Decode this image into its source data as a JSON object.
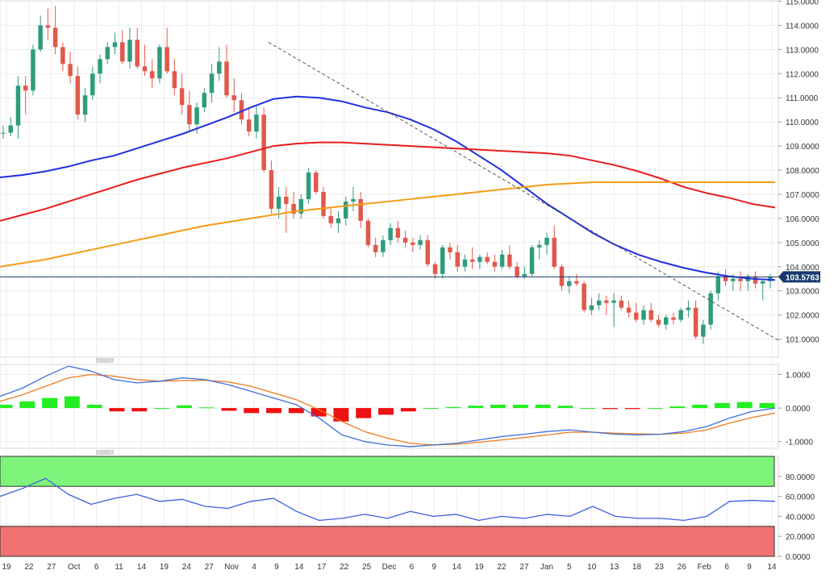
{
  "chart_data": [
    {
      "type": "candlestick",
      "panel": "price",
      "title": "",
      "x_tick_labels": [
        "19",
        "22",
        "27",
        "Oct",
        "6",
        "11",
        "14",
        "19",
        "24",
        "27",
        "Nov",
        "4",
        "9",
        "14",
        "17",
        "22",
        "25",
        "Dec",
        "6",
        "9",
        "14",
        "19",
        "22",
        "27",
        "Jan",
        "5",
        "10",
        "13",
        "18",
        "23",
        "26",
        "Feb",
        "6",
        "9",
        "14"
      ],
      "y_ticks": [
        "115.0000",
        "114.0000",
        "113.0000",
        "112.0000",
        "111.0000",
        "110.0000",
        "109.0000",
        "108.0000",
        "107.0000",
        "106.0000",
        "105.0000",
        "104.0000",
        "103.0000",
        "102.0000",
        "101.0000"
      ],
      "ylim": [
        100.25,
        115.05
      ],
      "last_price": "103.5763",
      "colors": {
        "up": "#2e9c7c",
        "down": "#e0594b",
        "ma50": "#1f2fe0",
        "ma100": "#e81c1c",
        "ma200": "#f59b15",
        "trendline": "#555555",
        "price_line": "#1a3a6e",
        "price_badge": "#1a3a6e"
      },
      "series": [
        {
          "name": "",
          "role": "ma50",
          "values": [
            107.7,
            107.8,
            107.95,
            108.15,
            108.4,
            108.6,
            108.9,
            109.2,
            109.5,
            109.85,
            110.2,
            110.6,
            110.95,
            111.05,
            111.0,
            110.85,
            110.6,
            110.4,
            110.1,
            109.7,
            109.2,
            108.6,
            108.0,
            107.3,
            106.6,
            106.0,
            105.4,
            104.9,
            104.5,
            104.2,
            103.95,
            103.75,
            103.6,
            103.5,
            103.45
          ]
        },
        {
          "name": "",
          "role": "ma100",
          "values": [
            105.9,
            106.15,
            106.4,
            106.7,
            107.0,
            107.3,
            107.6,
            107.85,
            108.1,
            108.3,
            108.5,
            108.75,
            109.0,
            109.1,
            109.15,
            109.15,
            109.1,
            109.05,
            109.0,
            108.95,
            108.9,
            108.85,
            108.8,
            108.75,
            108.7,
            108.6,
            108.4,
            108.2,
            107.95,
            107.65,
            107.3,
            107.05,
            106.85,
            106.6,
            106.45
          ]
        },
        {
          "name": "",
          "role": "ma200",
          "values": [
            104.0,
            104.15,
            104.3,
            104.5,
            104.7,
            104.9,
            105.1,
            105.3,
            105.5,
            105.7,
            105.85,
            106.0,
            106.15,
            106.3,
            106.4,
            106.5,
            106.6,
            106.7,
            106.8,
            106.9,
            107.0,
            107.1,
            107.2,
            107.3,
            107.4,
            107.45,
            107.5,
            107.5,
            107.5,
            107.5,
            107.5,
            107.5,
            107.5,
            107.5,
            107.5
          ]
        }
      ],
      "candles": [
        [
          109.55,
          109.85,
          109.3,
          109.55
        ],
        [
          109.55,
          110.2,
          109.4,
          109.85
        ],
        [
          109.85,
          111.9,
          109.3,
          111.5
        ],
        [
          111.5,
          111.9,
          110.3,
          111.3
        ],
        [
          111.3,
          113.2,
          111.1,
          113.0
        ],
        [
          113.0,
          114.4,
          112.9,
          114.0
        ],
        [
          114.0,
          114.7,
          113.4,
          113.9
        ],
        [
          113.9,
          114.8,
          112.8,
          113.1
        ],
        [
          113.1,
          113.3,
          112.1,
          112.4
        ],
        [
          112.4,
          112.9,
          111.6,
          111.9
        ],
        [
          111.9,
          112.3,
          110.1,
          110.3
        ],
        [
          110.3,
          111.4,
          110.0,
          111.1
        ],
        [
          111.1,
          112.3,
          110.9,
          112.0
        ],
        [
          112.0,
          112.8,
          111.6,
          112.6
        ],
        [
          112.6,
          113.3,
          112.4,
          113.1
        ],
        [
          113.1,
          113.7,
          112.8,
          113.3
        ],
        [
          113.3,
          113.8,
          112.4,
          112.5
        ],
        [
          112.5,
          113.9,
          112.2,
          113.4
        ],
        [
          113.4,
          113.9,
          112.2,
          112.3
        ],
        [
          112.3,
          113.2,
          111.9,
          112.1
        ],
        [
          112.1,
          112.6,
          111.4,
          111.8
        ],
        [
          111.8,
          113.2,
          111.6,
          113.1
        ],
        [
          113.1,
          113.9,
          112.0,
          112.1
        ],
        [
          112.1,
          112.6,
          111.1,
          111.4
        ],
        [
          111.4,
          112.0,
          110.3,
          110.7
        ],
        [
          110.7,
          111.3,
          109.6,
          109.9
        ],
        [
          109.9,
          110.8,
          109.5,
          110.6
        ],
        [
          110.6,
          111.4,
          110.4,
          111.2
        ],
        [
          111.2,
          112.4,
          110.8,
          112.0
        ],
        [
          112.0,
          113.1,
          111.7,
          112.5
        ],
        [
          112.5,
          113.2,
          111.0,
          111.1
        ],
        [
          111.1,
          111.8,
          110.4,
          110.9
        ],
        [
          110.9,
          111.2,
          109.9,
          110.1
        ],
        [
          110.1,
          110.6,
          109.4,
          109.6
        ],
        [
          109.6,
          110.7,
          109.3,
          110.3
        ],
        [
          110.3,
          110.6,
          107.9,
          108.0
        ],
        [
          108.0,
          108.4,
          106.2,
          106.4
        ],
        [
          106.4,
          107.3,
          106.0,
          106.9
        ],
        [
          106.9,
          107.3,
          105.4,
          106.6
        ],
        [
          106.6,
          107.1,
          106.0,
          106.2
        ],
        [
          106.2,
          107.0,
          106.0,
          106.8
        ],
        [
          106.8,
          108.1,
          106.6,
          107.9
        ],
        [
          107.9,
          108.0,
          107.0,
          107.1
        ],
        [
          107.1,
          107.3,
          106.0,
          106.1
        ],
        [
          106.1,
          106.4,
          105.6,
          105.8
        ],
        [
          105.8,
          106.3,
          105.4,
          106.0
        ],
        [
          106.0,
          106.9,
          105.7,
          106.7
        ],
        [
          106.7,
          107.3,
          106.3,
          106.8
        ],
        [
          106.8,
          107.1,
          105.6,
          105.9
        ],
        [
          105.9,
          106.0,
          104.8,
          104.9
        ],
        [
          104.9,
          105.2,
          104.4,
          104.6
        ],
        [
          104.6,
          105.3,
          104.4,
          105.1
        ],
        [
          105.1,
          105.8,
          104.9,
          105.6
        ],
        [
          105.6,
          105.9,
          105.0,
          105.2
        ],
        [
          105.2,
          105.5,
          104.8,
          105.0
        ],
        [
          105.0,
          105.2,
          104.6,
          104.9
        ],
        [
          104.9,
          105.3,
          104.7,
          105.1
        ],
        [
          105.1,
          105.3,
          104.0,
          104.1
        ],
        [
          104.1,
          104.2,
          103.5,
          103.7
        ],
        [
          103.7,
          104.9,
          103.5,
          104.8
        ],
        [
          104.8,
          105.0,
          104.3,
          104.6
        ],
        [
          104.6,
          104.9,
          103.8,
          104.0
        ],
        [
          104.0,
          104.5,
          103.8,
          104.3
        ],
        [
          104.3,
          104.8,
          103.9,
          104.2
        ],
        [
          104.2,
          104.5,
          103.9,
          104.4
        ],
        [
          104.4,
          104.6,
          104.1,
          104.2
        ],
        [
          104.2,
          104.5,
          103.8,
          104.0
        ],
        [
          104.0,
          104.7,
          103.9,
          104.5
        ],
        [
          104.5,
          104.9,
          103.9,
          104.0
        ],
        [
          104.0,
          104.2,
          103.5,
          103.6
        ],
        [
          103.6,
          104.0,
          103.5,
          103.7
        ],
        [
          103.7,
          104.9,
          103.6,
          104.8
        ],
        [
          104.8,
          105.1,
          104.3,
          104.9
        ],
        [
          104.9,
          105.4,
          104.5,
          105.2
        ],
        [
          105.2,
          105.7,
          103.9,
          104.0
        ],
        [
          104.0,
          104.1,
          103.0,
          103.2
        ],
        [
          103.2,
          103.6,
          102.9,
          103.4
        ],
        [
          103.4,
          103.7,
          103.2,
          103.3
        ],
        [
          103.3,
          103.4,
          102.1,
          102.2
        ],
        [
          102.2,
          102.7,
          102.0,
          102.4
        ],
        [
          102.4,
          102.9,
          102.2,
          102.6
        ],
        [
          102.6,
          102.8,
          102.0,
          102.5
        ],
        [
          102.5,
          102.9,
          101.5,
          102.6
        ],
        [
          102.6,
          102.8,
          102.2,
          102.3
        ],
        [
          102.3,
          102.6,
          101.9,
          102.1
        ],
        [
          102.1,
          102.5,
          101.7,
          101.8
        ],
        [
          101.8,
          102.4,
          101.6,
          102.2
        ],
        [
          102.2,
          102.5,
          101.7,
          101.8
        ],
        [
          101.8,
          102.0,
          101.5,
          101.6
        ],
        [
          101.6,
          102.0,
          101.4,
          101.9
        ],
        [
          101.9,
          102.1,
          101.6,
          101.8
        ],
        [
          101.8,
          102.3,
          101.7,
          102.2
        ],
        [
          102.2,
          102.6,
          101.9,
          102.3
        ],
        [
          102.3,
          102.6,
          101.0,
          101.1
        ],
        [
          101.1,
          101.8,
          100.8,
          101.6
        ],
        [
          101.6,
          103.0,
          101.4,
          102.9
        ],
        [
          102.9,
          103.8,
          102.6,
          103.6
        ],
        [
          103.6,
          103.9,
          103.2,
          103.4
        ],
        [
          103.4,
          103.7,
          103.0,
          103.5
        ],
        [
          103.5,
          103.8,
          103.0,
          103.4
        ],
        [
          103.4,
          103.7,
          103.0,
          103.6
        ],
        [
          103.6,
          103.8,
          103.1,
          103.3
        ],
        [
          103.3,
          103.5,
          102.6,
          103.4
        ],
        [
          103.4,
          103.7,
          103.1,
          103.58
        ]
      ],
      "trendline": {
        "from": [
          "Nov",
          113.3
        ],
        "to": [
          "Feb 14+",
          100.95
        ]
      }
    },
    {
      "type": "macd",
      "panel": "macd",
      "y_ticks": [
        "1.0000",
        "0.0000",
        "-1.0000"
      ],
      "ylim": [
        -1.2,
        1.3
      ],
      "colors": {
        "macd": "#3d6fe0",
        "signal": "#f07a1c",
        "hist_pos": "#22ee22",
        "hist_neg": "#ee1111"
      },
      "macd": [
        0.35,
        0.6,
        0.95,
        1.25,
        1.1,
        0.85,
        0.75,
        0.8,
        0.9,
        0.85,
        0.7,
        0.5,
        0.3,
        0.1,
        -0.3,
        -0.8,
        -1.0,
        -1.1,
        -1.15,
        -1.1,
        -1.05,
        -0.95,
        -0.85,
        -0.78,
        -0.7,
        -0.65,
        -0.72,
        -0.78,
        -0.8,
        -0.78,
        -0.7,
        -0.55,
        -0.3,
        -0.1,
        0.0
      ],
      "signal": [
        0.2,
        0.4,
        0.65,
        0.9,
        1.0,
        0.95,
        0.85,
        0.8,
        0.82,
        0.83,
        0.78,
        0.65,
        0.45,
        0.25,
        -0.05,
        -0.4,
        -0.7,
        -0.9,
        -1.05,
        -1.1,
        -1.08,
        -1.02,
        -0.95,
        -0.88,
        -0.8,
        -0.72,
        -0.72,
        -0.75,
        -0.77,
        -0.78,
        -0.75,
        -0.65,
        -0.45,
        -0.28,
        -0.15
      ],
      "histogram": [
        0.1,
        0.2,
        0.3,
        0.35,
        0.1,
        -0.1,
        -0.1,
        0.0,
        0.08,
        0.02,
        -0.08,
        -0.15,
        -0.15,
        -0.15,
        -0.25,
        -0.4,
        -0.3,
        -0.2,
        -0.1,
        0.0,
        0.03,
        0.07,
        0.1,
        0.1,
        0.1,
        0.07,
        0.0,
        -0.03,
        -0.03,
        0.0,
        0.05,
        0.1,
        0.15,
        0.18,
        0.15
      ]
    },
    {
      "type": "rsi",
      "panel": "rsi",
      "y_ticks": [
        "80.0000",
        "60.0000",
        "40.0000",
        "20.0000",
        "0.0000"
      ],
      "ylim": [
        0,
        100
      ],
      "overbought": 70,
      "oversold": 30,
      "colors": {
        "line": "#3d5fe0",
        "overbought_zone": "#7ef47a",
        "oversold_zone": "#f27272"
      },
      "values": [
        60,
        68,
        78,
        62,
        52,
        58,
        62,
        55,
        57,
        50,
        48,
        55,
        58,
        45,
        36,
        38,
        42,
        38,
        45,
        40,
        42,
        36,
        40,
        38,
        42,
        40,
        50,
        40,
        38,
        38,
        36,
        40,
        55,
        56,
        55
      ]
    }
  ]
}
